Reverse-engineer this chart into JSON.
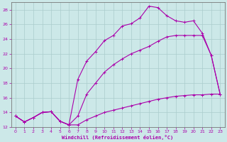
{
  "background_color": "#cce8e8",
  "grid_color": "#aacccc",
  "line_color": "#aa00aa",
  "xlabel": "Windchill (Refroidissement éolien,°C)",
  "xlim": [
    -0.5,
    23.5
  ],
  "ylim": [
    12,
    29
  ],
  "yticks": [
    12,
    14,
    16,
    18,
    20,
    22,
    24,
    26,
    28
  ],
  "xticks": [
    0,
    1,
    2,
    3,
    4,
    5,
    6,
    7,
    8,
    9,
    10,
    11,
    12,
    13,
    14,
    15,
    16,
    17,
    18,
    19,
    20,
    21,
    22,
    23
  ],
  "curve1_x": [
    0,
    1,
    2,
    3,
    4,
    5,
    6,
    7,
    8,
    9,
    10,
    11,
    12,
    13,
    14,
    15,
    16,
    17,
    18,
    19,
    20,
    21,
    22,
    23
  ],
  "curve1_y": [
    13.5,
    12.7,
    13.3,
    14.0,
    14.1,
    12.8,
    12.3,
    12.3,
    13.0,
    13.5,
    14.0,
    14.3,
    14.6,
    14.9,
    15.2,
    15.5,
    15.8,
    16.0,
    16.2,
    16.3,
    16.4,
    16.4,
    16.5,
    16.5
  ],
  "curve2_x": [
    0,
    1,
    2,
    3,
    4,
    5,
    6,
    7,
    8,
    9,
    10,
    11,
    12,
    13,
    14,
    15,
    16,
    17,
    18,
    19,
    20,
    21,
    22,
    23
  ],
  "curve2_y": [
    13.5,
    12.7,
    13.3,
    14.0,
    14.1,
    12.8,
    12.3,
    18.5,
    21.0,
    22.3,
    23.8,
    24.5,
    25.8,
    26.1,
    26.9,
    28.5,
    28.3,
    27.2,
    26.5,
    26.3,
    26.5,
    24.8,
    21.8,
    16.5
  ],
  "curve3_x": [
    0,
    1,
    2,
    3,
    4,
    5,
    6,
    7,
    8,
    9,
    10,
    11,
    12,
    13,
    14,
    15,
    16,
    17,
    18,
    19,
    20,
    21,
    22,
    23
  ],
  "curve3_y": [
    13.5,
    12.7,
    13.3,
    14.0,
    14.1,
    12.8,
    12.3,
    13.5,
    16.5,
    18.0,
    19.5,
    20.5,
    21.3,
    22.0,
    22.5,
    23.0,
    23.7,
    24.3,
    24.5,
    24.5,
    24.5,
    24.5,
    21.8,
    16.5
  ]
}
